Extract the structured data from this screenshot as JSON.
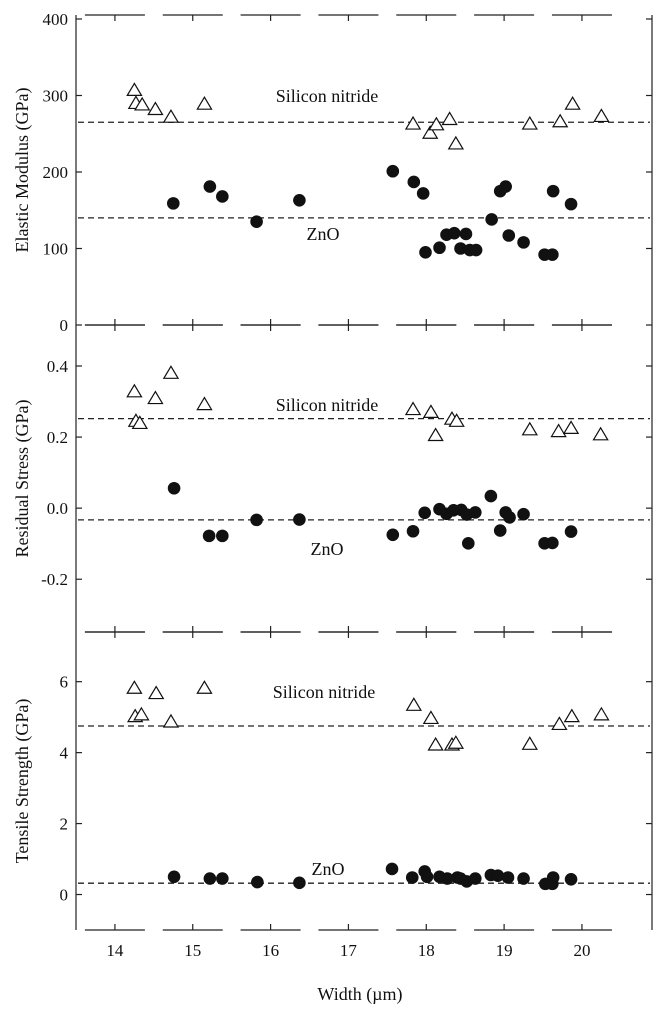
{
  "chart_data": {
    "type": "scatter",
    "xlabel": "Width (µm)",
    "xlim": [
      13.5,
      20.9
    ],
    "xticks": [
      14,
      15,
      16,
      17,
      18,
      19,
      20
    ],
    "panels": [
      {
        "ylabel": "Elastic Modulus (GPa)",
        "ylim": [
          0,
          400
        ],
        "yticks": [
          0,
          100,
          200,
          300,
          400
        ],
        "ytick_labels": [
          "0",
          "100",
          "200",
          "300",
          "400"
        ],
        "reference_lines": [
          {
            "series": "Silicon nitride",
            "y": 265
          },
          {
            "series": "ZnO",
            "y": 140
          }
        ],
        "series": [
          {
            "name": "Silicon nitride",
            "marker": "open-triangle",
            "points": [
              [
                14.25,
                306
              ],
              [
                14.27,
                289
              ],
              [
                14.35,
                287
              ],
              [
                14.52,
                281
              ],
              [
                14.72,
                271
              ],
              [
                15.15,
                288
              ],
              [
                17.83,
                262
              ],
              [
                18.05,
                250
              ],
              [
                18.13,
                261
              ],
              [
                18.3,
                268
              ],
              [
                18.38,
                236
              ],
              [
                19.33,
                262
              ],
              [
                19.72,
                265
              ],
              [
                19.88,
                288
              ],
              [
                20.25,
                272
              ]
            ]
          },
          {
            "name": "ZnO",
            "marker": "filled-circle",
            "points": [
              [
                14.75,
                159
              ],
              [
                15.22,
                181
              ],
              [
                15.38,
                168
              ],
              [
                15.82,
                135
              ],
              [
                16.37,
                163
              ],
              [
                17.57,
                201
              ],
              [
                17.84,
                187
              ],
              [
                17.96,
                172
              ],
              [
                17.99,
                95
              ],
              [
                18.17,
                101
              ],
              [
                18.26,
                118
              ],
              [
                18.36,
                120
              ],
              [
                18.44,
                100
              ],
              [
                18.51,
                119
              ],
              [
                18.56,
                98
              ],
              [
                18.64,
                98
              ],
              [
                18.84,
                138
              ],
              [
                18.95,
                175
              ],
              [
                19.02,
                181
              ],
              [
                19.06,
                117
              ],
              [
                19.25,
                108
              ],
              [
                19.52,
                92
              ],
              [
                19.62,
                92
              ],
              [
                19.63,
                175
              ],
              [
                19.86,
                158
              ]
            ]
          }
        ]
      },
      {
        "ylabel": "Residual Stress (GPa)",
        "ylim": [
          -0.25,
          0.4
        ],
        "yticks": [
          -0.2,
          0.0,
          0.2,
          0.4
        ],
        "ytick_labels": [
          "-0.2",
          "0.0",
          "0.2",
          "0.4"
        ],
        "reference_lines": [
          {
            "series": "Silicon nitride",
            "y": 0.252
          },
          {
            "series": "ZnO",
            "y": -0.033
          }
        ],
        "series": [
          {
            "name": "Silicon nitride",
            "marker": "open-triangle",
            "points": [
              [
                14.25,
                0.326
              ],
              [
                14.27,
                0.243
              ],
              [
                14.32,
                0.237
              ],
              [
                14.52,
                0.307
              ],
              [
                14.72,
                0.378
              ],
              [
                15.15,
                0.29
              ],
              [
                17.83,
                0.276
              ],
              [
                18.06,
                0.268
              ],
              [
                18.12,
                0.203
              ],
              [
                18.33,
                0.249
              ],
              [
                18.39,
                0.243
              ],
              [
                19.33,
                0.219
              ],
              [
                19.7,
                0.214
              ],
              [
                19.86,
                0.223
              ],
              [
                20.24,
                0.205
              ]
            ]
          },
          {
            "name": "ZnO",
            "marker": "filled-circle",
            "points": [
              [
                14.76,
                0.056
              ],
              [
                15.21,
                -0.078
              ],
              [
                15.38,
                -0.078
              ],
              [
                15.82,
                -0.033
              ],
              [
                16.37,
                -0.032
              ],
              [
                17.57,
                -0.075
              ],
              [
                17.83,
                -0.065
              ],
              [
                17.98,
                -0.013
              ],
              [
                18.17,
                -0.003
              ],
              [
                18.26,
                -0.016
              ],
              [
                18.35,
                -0.006
              ],
              [
                18.45,
                -0.005
              ],
              [
                18.52,
                -0.018
              ],
              [
                18.54,
                -0.099
              ],
              [
                18.63,
                -0.012
              ],
              [
                18.83,
                0.034
              ],
              [
                18.95,
                -0.063
              ],
              [
                19.02,
                -0.012
              ],
              [
                19.07,
                -0.026
              ],
              [
                19.25,
                -0.017
              ],
              [
                19.52,
                -0.099
              ],
              [
                19.62,
                -0.098
              ],
              [
                19.86,
                -0.066
              ]
            ]
          }
        ]
      },
      {
        "ylabel": "Tensile Strength (GPa)",
        "ylim": [
          -1,
          7.4
        ],
        "yticks": [
          0,
          2,
          4,
          6
        ],
        "ytick_labels": [
          "0",
          "2",
          "4",
          "6"
        ],
        "reference_lines": [
          {
            "series": "Silicon nitride",
            "y": 4.75
          },
          {
            "series": "ZnO",
            "y": 0.32
          }
        ],
        "series": [
          {
            "name": "Silicon nitride",
            "marker": "open-triangle",
            "points": [
              [
                14.25,
                5.8
              ],
              [
                14.26,
                5.0
              ],
              [
                14.34,
                5.05
              ],
              [
                14.53,
                5.65
              ],
              [
                14.72,
                4.85
              ],
              [
                15.15,
                5.8
              ],
              [
                17.84,
                5.32
              ],
              [
                18.06,
                4.95
              ],
              [
                18.12,
                4.2
              ],
              [
                18.33,
                4.2
              ],
              [
                18.38,
                4.25
              ],
              [
                19.33,
                4.22
              ],
              [
                19.71,
                4.78
              ],
              [
                19.87,
                5.0
              ],
              [
                20.25,
                5.05
              ]
            ]
          },
          {
            "name": "ZnO",
            "marker": "filled-circle",
            "points": [
              [
                14.76,
                0.5
              ],
              [
                15.22,
                0.45
              ],
              [
                15.38,
                0.45
              ],
              [
                15.83,
                0.35
              ],
              [
                16.37,
                0.33
              ],
              [
                17.56,
                0.72
              ],
              [
                17.82,
                0.48
              ],
              [
                17.98,
                0.65
              ],
              [
                18.01,
                0.5
              ],
              [
                18.17,
                0.5
              ],
              [
                18.27,
                0.45
              ],
              [
                18.4,
                0.48
              ],
              [
                18.44,
                0.45
              ],
              [
                18.52,
                0.37
              ],
              [
                18.63,
                0.45
              ],
              [
                18.83,
                0.55
              ],
              [
                18.92,
                0.53
              ],
              [
                19.05,
                0.48
              ],
              [
                19.25,
                0.45
              ],
              [
                19.53,
                0.3
              ],
              [
                19.62,
                0.3
              ],
              [
                19.63,
                0.48
              ],
              [
                19.86,
                0.43
              ]
            ]
          }
        ]
      }
    ]
  }
}
